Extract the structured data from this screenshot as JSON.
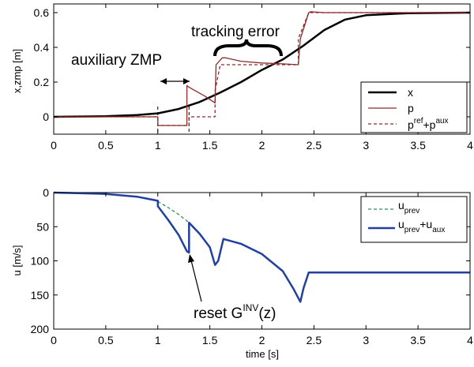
{
  "chart_data": [
    {
      "type": "line",
      "xlabel": "",
      "ylabel": "x,zmp [m]",
      "xlim": [
        0,
        4
      ],
      "ylim": [
        -0.1,
        0.65
      ],
      "xticks": [
        "0",
        "0.5",
        "1",
        "1.5",
        "2",
        "2.5",
        "3",
        "3.5",
        "4"
      ],
      "yticks": [
        "0",
        "0.2",
        "0.4",
        "0.6"
      ],
      "grid": false,
      "legend_position": "bottom-right",
      "legend": [
        {
          "label": "x",
          "sup": ""
        },
        {
          "label": "p",
          "sup": ""
        },
        {
          "label_parts": [
            "p",
            "ref",
            "+p",
            "aux"
          ]
        }
      ],
      "series": [
        {
          "name": "x",
          "color": "#000000",
          "style": "solid",
          "x": [
            0,
            0.5,
            0.8,
            1.0,
            1.2,
            1.4,
            1.6,
            1.8,
            2.0,
            2.2,
            2.4,
            2.6,
            2.8,
            3.0,
            3.4,
            4.0
          ],
          "y": [
            0,
            0.003,
            0.01,
            0.02,
            0.045,
            0.085,
            0.14,
            0.2,
            0.27,
            0.33,
            0.41,
            0.5,
            0.56,
            0.585,
            0.597,
            0.6
          ]
        },
        {
          "name": "p",
          "color": "#8b2a2a",
          "style": "solid",
          "x": [
            0,
            1.0,
            1.0,
            1.28,
            1.28,
            1.3,
            1.45,
            1.55,
            1.56,
            1.62,
            1.65,
            1.8,
            2.0,
            2.2,
            2.35,
            2.37,
            2.45,
            2.47,
            2.6,
            4.0
          ],
          "y": [
            0,
            0,
            -0.05,
            -0.05,
            0.18,
            0.17,
            0.12,
            0.08,
            0.3,
            0.34,
            0.34,
            0.32,
            0.31,
            0.305,
            0.3,
            0.45,
            0.6,
            0.605,
            0.6,
            0.6
          ]
        },
        {
          "name": "pref+paux",
          "color": "#8b2a2a",
          "style": "dashed",
          "x": [
            0,
            1.0,
            1.0,
            1.3,
            1.3,
            1.55,
            1.55,
            1.6,
            1.6,
            2.35,
            2.35,
            2.45,
            2.45,
            4.0
          ],
          "y": [
            0,
            0,
            -0.05,
            -0.05,
            0,
            0,
            0.15,
            0.3,
            0.3,
            0.3,
            0.45,
            0.6,
            0.6,
            0.6
          ]
        }
      ],
      "annotations": [
        {
          "text": "tracking error",
          "x": 1.85,
          "y": 0.545
        },
        {
          "text": "auxiliary ZMP",
          "x": 0.8,
          "y": 0.43
        }
      ],
      "vlines": [
        1.0,
        1.3
      ]
    },
    {
      "type": "line",
      "xlabel": "time [s]",
      "ylabel": "u [m/s]",
      "xlim": [
        0,
        4
      ],
      "ylim": [
        200,
        0
      ],
      "xticks": [
        "0",
        "0.5",
        "1",
        "1.5",
        "2",
        "2.5",
        "3",
        "3.5",
        "4"
      ],
      "yticks": [
        "0",
        "50",
        "100",
        "150",
        "200"
      ],
      "grid": false,
      "legend_position": "top-right",
      "legend": [
        {
          "label_parts": [
            "u",
            "prev"
          ]
        },
        {
          "label_parts": [
            "u",
            "prev",
            "+u",
            "aux"
          ]
        }
      ],
      "series": [
        {
          "name": "uprev",
          "color": "#2e8b57",
          "style": "dashed",
          "x": [
            1.0,
            1.1,
            1.2,
            1.3
          ],
          "y": [
            13,
            22,
            32,
            44
          ]
        },
        {
          "name": "uprev+uaux",
          "color": "#2140a0",
          "style": "solid",
          "x": [
            0,
            0.5,
            0.8,
            1.0,
            1.0,
            1.1,
            1.2,
            1.28,
            1.3,
            1.3,
            1.4,
            1.5,
            1.55,
            1.58,
            1.63,
            1.8,
            2.0,
            2.2,
            2.3,
            2.37,
            2.4,
            2.45,
            2.5,
            4.0
          ],
          "y": [
            0,
            2,
            6,
            12,
            20,
            40,
            62,
            86,
            88,
            44,
            60,
            80,
            106,
            100,
            68,
            75,
            90,
            115,
            140,
            160,
            140,
            117,
            117,
            117
          ]
        }
      ],
      "annotations": [
        {
          "text_parts": [
            "reset G",
            "INV",
            "(z)"
          ],
          "x": 1.55,
          "y": 172
        }
      ]
    }
  ]
}
